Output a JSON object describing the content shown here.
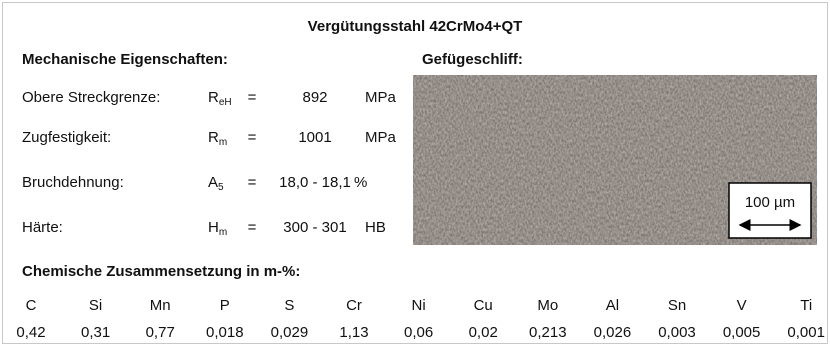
{
  "title": "Vergütungsstahl 42CrMo4+QT",
  "mechanical": {
    "heading": "Mechanische Eigenschaften:",
    "rows": [
      {
        "label": "Obere Streckgrenze:",
        "symbol": "R",
        "subscript": "eH",
        "equals": "=",
        "value": "892",
        "unit": "MPa"
      },
      {
        "label": "Zugfestigkeit:",
        "symbol": "R",
        "subscript": "m",
        "equals": "=",
        "value": "1001",
        "unit": "MPa"
      },
      {
        "label": "Bruchdehnung:",
        "symbol": "A",
        "subscript": "5",
        "equals": "=",
        "value": "18,0 - 18,1",
        "unit": "%"
      },
      {
        "label": "Härte:",
        "symbol": "H",
        "subscript": "m",
        "equals": "=",
        "value": "300 - 301",
        "unit": "HB"
      }
    ]
  },
  "micrograph": {
    "heading": "Gefügeschliff:",
    "scale": "100 µm"
  },
  "chemistry": {
    "heading": "Chemische Zusammensetzung in m-%:",
    "elements": [
      "C",
      "Si",
      "Mn",
      "P",
      "S",
      "Cr",
      "Ni",
      "Cu",
      "Mo",
      "Al",
      "Sn",
      "V",
      "Ti"
    ],
    "values": [
      "0,42",
      "0,31",
      "0,77",
      "0,018",
      "0,029",
      "1,13",
      "0,06",
      "0,02",
      "0,213",
      "0,026",
      "0,003",
      "0,005",
      "0,001"
    ]
  }
}
